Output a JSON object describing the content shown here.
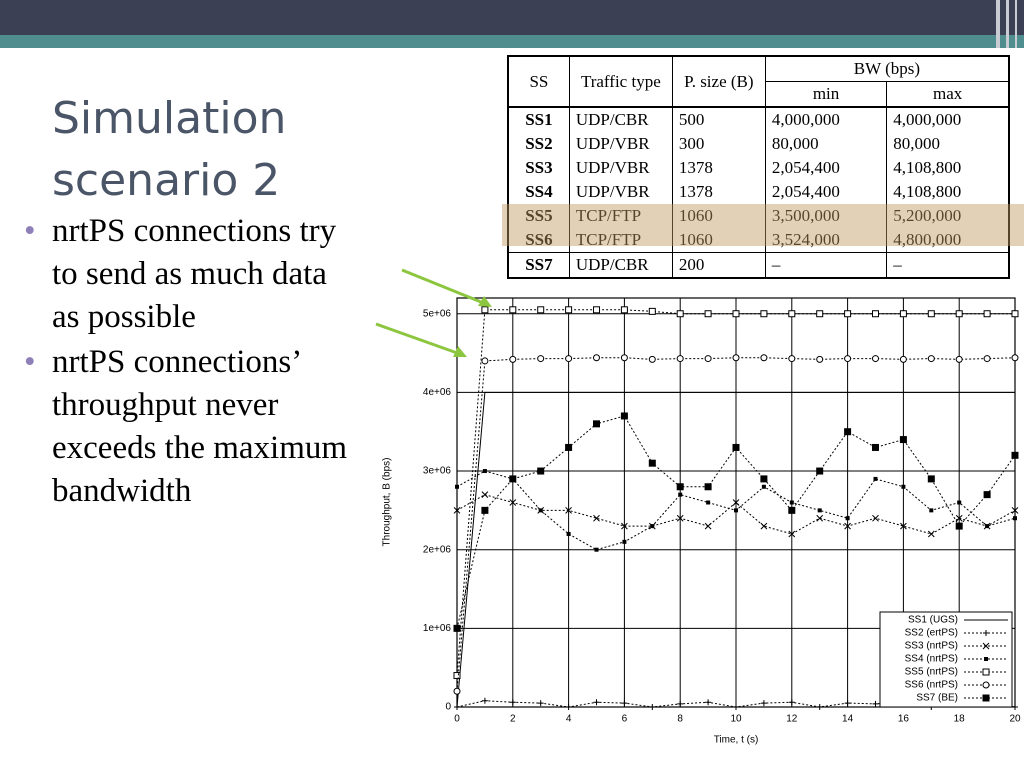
{
  "title": "Simulation scenario 2",
  "bullets": [
    "nrtPS connections try to send as much data as possible",
    "nrtPS connections’ throughput never exceeds the maximum bandwidth"
  ],
  "table": {
    "header": [
      "SS",
      "Traffic type",
      "P. size (B)",
      "BW (bps)"
    ],
    "subheader": [
      "min",
      "max"
    ],
    "rows": [
      [
        "SS1",
        "UDP/CBR",
        "500",
        "4,000,000",
        "4,000,000"
      ],
      [
        "SS2",
        "UDP/VBR",
        "300",
        "80,000",
        "80,000"
      ],
      [
        "SS3",
        "UDP/VBR",
        "1378",
        "2,054,400",
        "4,108,800"
      ],
      [
        "SS4",
        "UDP/VBR",
        "1378",
        "2,054,400",
        "4,108,800"
      ],
      [
        "SS5",
        "TCP/FTP",
        "1060",
        "3,500,000",
        "5,200,000"
      ],
      [
        "SS6",
        "TCP/FTP",
        "1060",
        "3,524,000",
        "4,800,000"
      ],
      [
        "SS7",
        "UDP/CBR",
        "200",
        "–",
        "–"
      ]
    ]
  },
  "chart_data": {
    "type": "line",
    "x_label": "Time, t (s)",
    "y_label": "Throughput, B (bps)",
    "x": [
      0,
      1,
      2,
      3,
      4,
      5,
      6,
      7,
      8,
      9,
      10,
      11,
      12,
      13,
      14,
      15,
      16,
      17,
      18,
      19,
      20
    ],
    "xlim": [
      0,
      20
    ],
    "xticks": [
      0,
      2,
      4,
      6,
      8,
      10,
      12,
      14,
      16,
      18,
      20
    ],
    "ylim": [
      0,
      5200000
    ],
    "yticks": [
      0,
      {
        "value": 1000000,
        "label": "1e+06"
      },
      {
        "value": 2000000,
        "label": "2e+06"
      },
      {
        "value": 3000000,
        "label": "3e+06"
      },
      {
        "value": 4000000,
        "label": "4e+06"
      },
      {
        "value": 5000000,
        "label": "5e+06"
      }
    ],
    "grid": true,
    "legend": "lower right",
    "series": [
      {
        "name": "SS1 (UGS)",
        "color": "#000000",
        "marker": "none",
        "values": [
          0,
          4000000,
          4000000,
          4000000,
          4000000,
          4000000,
          4000000,
          4000000,
          4000000,
          4000000,
          4000000,
          4000000,
          4000000,
          4000000,
          4000000,
          4000000,
          4000000,
          4000000,
          4000000,
          4000000,
          4000000
        ]
      },
      {
        "name": "SS2 (ertPS)",
        "color": "#000000",
        "marker": "plus",
        "values": [
          0,
          80000,
          60000,
          50000,
          0,
          60000,
          50000,
          0,
          40000,
          60000,
          0,
          50000,
          60000,
          0,
          50000,
          40000,
          60000,
          0,
          50000,
          60000,
          0
        ]
      },
      {
        "name": "SS3 (nrtPS)",
        "color": "#000000",
        "marker": "cross",
        "values": [
          2500000,
          2700000,
          2600000,
          2500000,
          2500000,
          2400000,
          2300000,
          2300000,
          2400000,
          2300000,
          2600000,
          2300000,
          2200000,
          2400000,
          2300000,
          2400000,
          2300000,
          2200000,
          2400000,
          2300000,
          2500000
        ]
      },
      {
        "name": "SS4 (nrtPS)",
        "color": "#000000",
        "marker": "small-square",
        "values": [
          2800000,
          3000000,
          2900000,
          2500000,
          2200000,
          2000000,
          2100000,
          2300000,
          2700000,
          2600000,
          2500000,
          2800000,
          2600000,
          2500000,
          2400000,
          2900000,
          2800000,
          2500000,
          2600000,
          2300000,
          2400000
        ]
      },
      {
        "name": "SS5 (nrtPS)",
        "color": "#000000",
        "marker": "open-square",
        "values": [
          400000,
          5050000,
          5050000,
          5050000,
          5050000,
          5050000,
          5050000,
          5030000,
          5000000,
          5000000,
          5000000,
          5000000,
          5000000,
          5000000,
          5000000,
          5000000,
          5000000,
          5000000,
          5000000,
          5000000,
          5000000
        ]
      },
      {
        "name": "SS6 (nrtPS)",
        "color": "#000000",
        "marker": "open-circle",
        "values": [
          200000,
          4400000,
          4420000,
          4430000,
          4430000,
          4440000,
          4440000,
          4420000,
          4430000,
          4430000,
          4440000,
          4440000,
          4430000,
          4420000,
          4430000,
          4430000,
          4420000,
          4430000,
          4420000,
          4430000,
          4440000
        ]
      },
      {
        "name": "SS7 (BE)",
        "color": "#000000",
        "marker": "square",
        "values": [
          1000000,
          2500000,
          2900000,
          3000000,
          3300000,
          3600000,
          3700000,
          3100000,
          2800000,
          2800000,
          3300000,
          2900000,
          2500000,
          3000000,
          3500000,
          3300000,
          3400000,
          2900000,
          2300000,
          2700000,
          3200000
        ]
      }
    ]
  }
}
